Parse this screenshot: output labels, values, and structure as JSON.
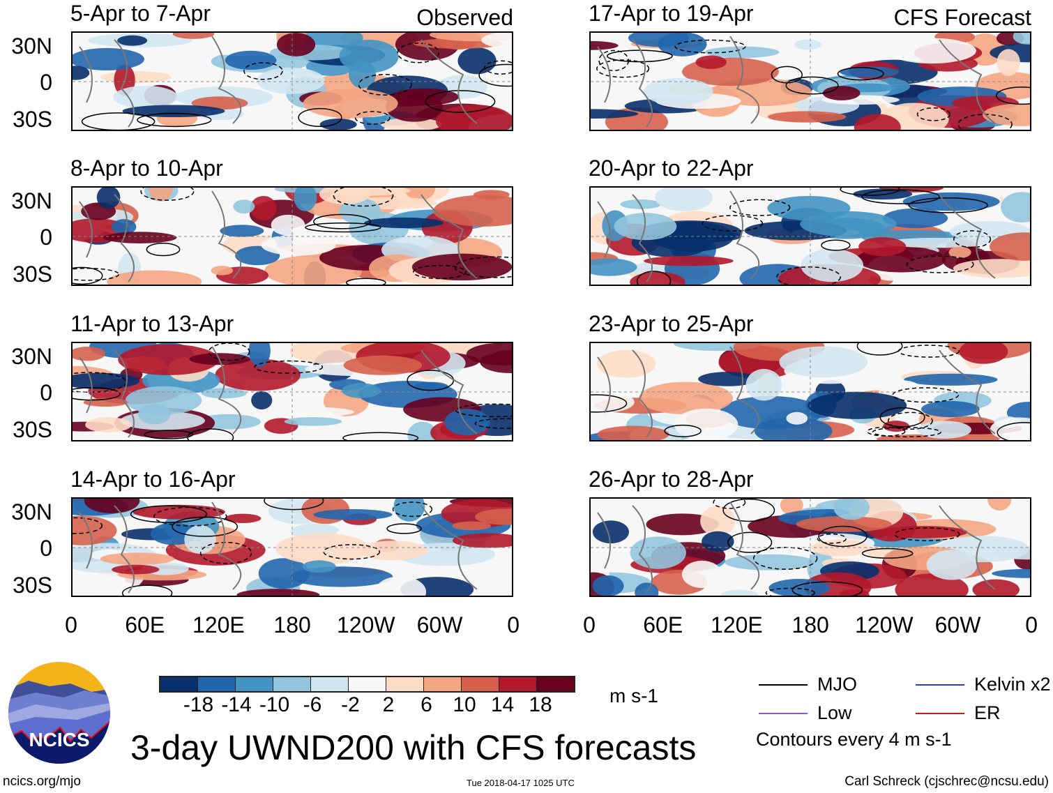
{
  "panels": [
    {
      "title": "5-Apr to 7-Apr",
      "tag": "Observed"
    },
    {
      "title": "17-Apr to 19-Apr",
      "tag": "CFS Forecast"
    },
    {
      "title": "8-Apr to 10-Apr"
    },
    {
      "title": "20-Apr to 22-Apr"
    },
    {
      "title": "11-Apr to 13-Apr"
    },
    {
      "title": "23-Apr to 25-Apr"
    },
    {
      "title": "14-Apr to 16-Apr"
    },
    {
      "title": "26-Apr to 28-Apr"
    }
  ],
  "lat_ticks": [
    "30N",
    "0",
    "30S"
  ],
  "lon_ticks": [
    "0",
    "60E",
    "120E",
    "180",
    "120W",
    "60W",
    "0"
  ],
  "colorbar": {
    "colors": [
      "#08306b",
      "#2166ac",
      "#4393c3",
      "#92c5de",
      "#d1e5f0",
      "#f7f7f7",
      "#fddbc7",
      "#f4a582",
      "#d6604d",
      "#b2182b",
      "#67001f"
    ],
    "labels": [
      "-18",
      "-14",
      "-10",
      "-6",
      "-2",
      "2",
      "6",
      "10",
      "14",
      "18"
    ],
    "units": "m s-1"
  },
  "title": "3-day UWND200 with CFS forecasts",
  "legend": {
    "items": [
      {
        "label": "MJO",
        "color": "#000000"
      },
      {
        "label": "Kelvin x2",
        "color": "#1f3fd6"
      },
      {
        "label": "Low",
        "color": "#9b4fd6"
      },
      {
        "label": "ER",
        "color": "#e01010"
      }
    ],
    "note": "Contours every 4 m s-1"
  },
  "logo": {
    "text": "NCICS"
  },
  "footer": {
    "url": "ncics.org/mjo",
    "timestamp": "Tue 2018-04-17 1025 UTC",
    "author": "Carl Schreck (cjschrec@ncsu.edu)"
  }
}
